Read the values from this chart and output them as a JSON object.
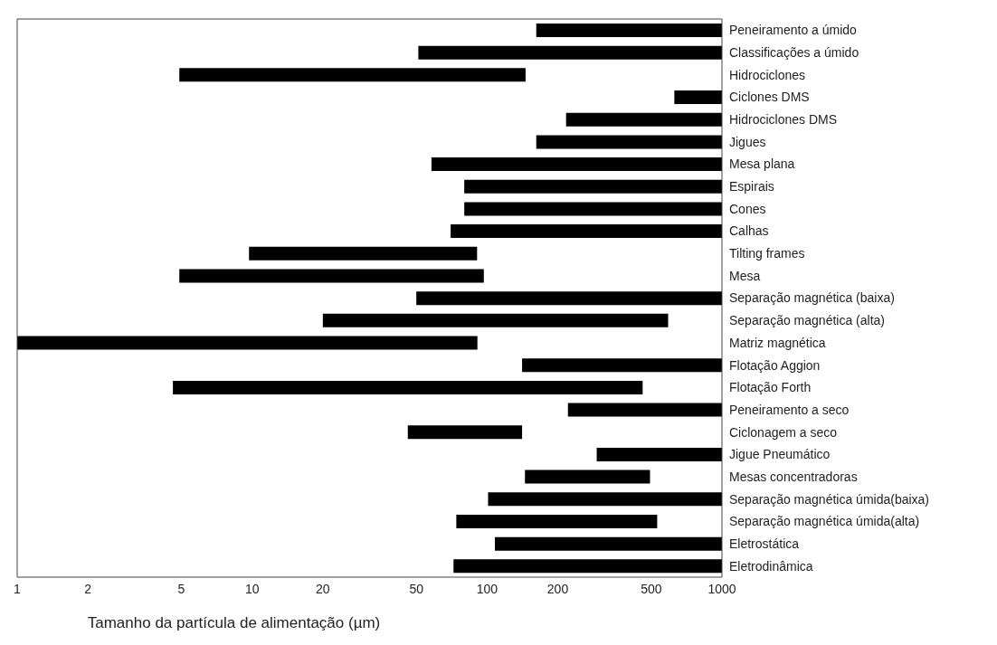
{
  "chart_data": {
    "type": "bar",
    "orientation": "horizontal",
    "xlabel": "Tamanho da partícula de alimentação (µm)",
    "categories": [
      "Peneiramento a úmido",
      "Classificações a úmido",
      "Hidrociclones",
      "Ciclones DMS",
      "Hidrociclones DMS",
      "Jigues",
      "Mesa plana",
      "Espirais",
      "Cones",
      "Calhas",
      "Tilting frames",
      "Mesa",
      "Separação magnética (baixa)",
      "Separação magnética (alta)",
      "Matriz magnética",
      "Flotação Aggion",
      "Flotação Forth",
      "Peneiramento a seco",
      "Ciclonagem a seco",
      "Jigue Pneumático",
      "Mesas concentradoras",
      "Separação magnética úmida(baixa)",
      "Separação magnética úmida(alta)",
      "Eletrostática",
      "Eletrodinâmica"
    ],
    "base": [
      162,
      51,
      4.9,
      627,
      217,
      162,
      58,
      80,
      80,
      70,
      9.7,
      4.9,
      50,
      20,
      1,
      141,
      4.6,
      221,
      46,
      293,
      145,
      101,
      74,
      108,
      72
    ],
    "values": [
      838,
      949,
      141,
      373,
      783,
      838,
      942,
      920,
      920,
      930,
      81,
      92,
      950,
      570,
      90,
      859,
      455,
      779,
      95,
      707,
      349,
      899,
      456,
      892,
      928
    ],
    "color": "#000000",
    "log": "x",
    "xlim": [
      1,
      1000
    ],
    "xticks": [
      1,
      2,
      5,
      10,
      20,
      50,
      100,
      200,
      500,
      1000
    ]
  }
}
